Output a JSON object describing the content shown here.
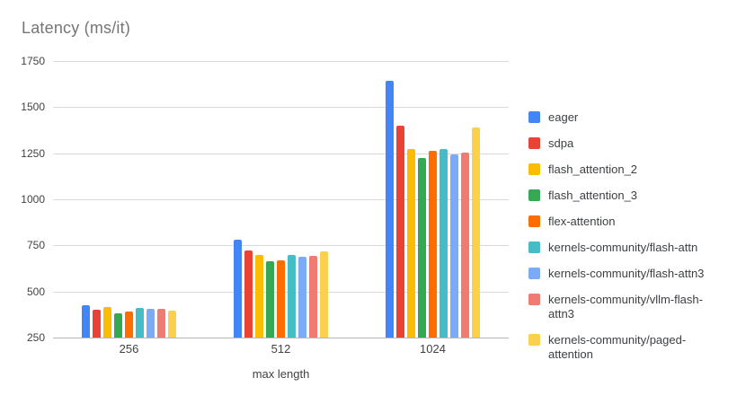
{
  "chart_data": {
    "type": "bar",
    "title": "Latency (ms/it)",
    "xlabel": "max length",
    "ylabel": "",
    "categories": [
      "256",
      "512",
      "1024"
    ],
    "series": [
      {
        "name": "eager",
        "color": "#4285F4",
        "values": [
          425,
          782,
          1642
        ]
      },
      {
        "name": "sdpa",
        "color": "#EA4335",
        "values": [
          400,
          723,
          1398
        ]
      },
      {
        "name": "flash_attention_2",
        "color": "#FBBC04",
        "values": [
          415,
          698,
          1274
        ]
      },
      {
        "name": "flash_attention_3",
        "color": "#34A853",
        "values": [
          380,
          664,
          1222
        ]
      },
      {
        "name": "flex-attention",
        "color": "#FF6D01",
        "values": [
          392,
          671,
          1264
        ]
      },
      {
        "name": "kernels-community/flash-attn",
        "color": "#46BDC6",
        "values": [
          410,
          697,
          1272
        ]
      },
      {
        "name": "kernels-community/flash-attn3",
        "color": "#7BAAF7",
        "values": [
          405,
          688,
          1242
        ]
      },
      {
        "name": "kernels-community/vllm-flash-attn3",
        "color": "#F07B72",
        "values": [
          405,
          691,
          1252
        ]
      },
      {
        "name": "kernels-community/paged-attention",
        "color": "#FCD04F",
        "values": [
          398,
          716,
          1392
        ]
      }
    ],
    "ylim": [
      250,
      1750
    ],
    "yticks": [
      250,
      500,
      750,
      1000,
      1250,
      1500,
      1750
    ],
    "grid": true,
    "legend_position": "right",
    "colors": {
      "title_text": "#757575",
      "axis_text": "#424242",
      "legend_text": "#3c4043",
      "gridline": "#dadada",
      "baseline": "#b7b7b7",
      "background": "#ffffff"
    }
  }
}
